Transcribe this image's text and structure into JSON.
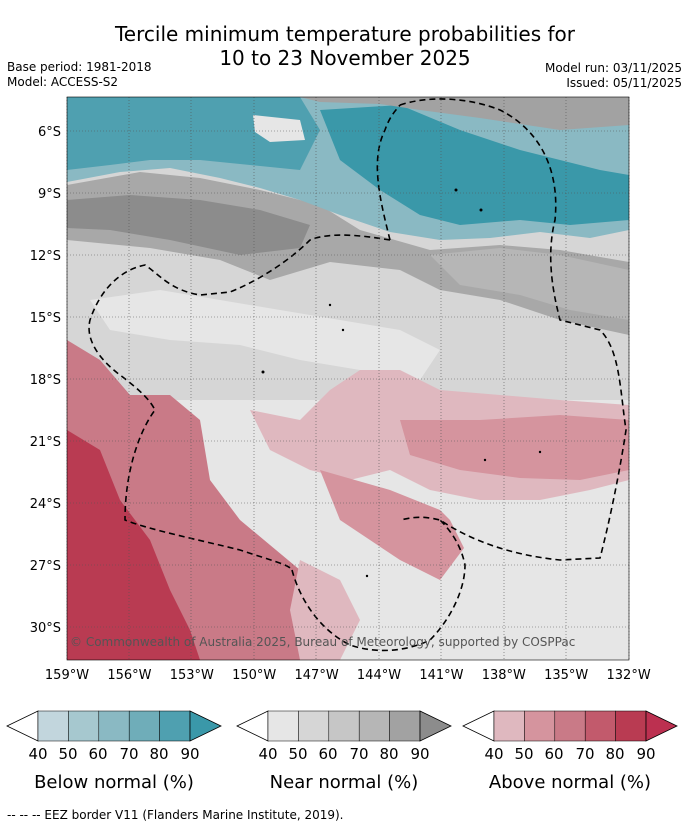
{
  "title": {
    "line1": "Tercile minimum temperature probabilities for",
    "line2": "10 to 23 November 2025"
  },
  "meta": {
    "base_period": "Base period: 1981-2018",
    "model": "Model: ACCESS-S2",
    "model_run": "Model run: 03/11/2025",
    "issued": "Issued: 05/11/2025"
  },
  "map": {
    "lat_labels": [
      "6°S",
      "9°S",
      "12°S",
      "15°S",
      "18°S",
      "21°S",
      "24°S",
      "27°S",
      "30°S"
    ],
    "lon_labels": [
      "159°W",
      "156°W",
      "153°W",
      "150°W",
      "147°W",
      "144°W",
      "141°W",
      "138°W",
      "135°W",
      "132°W"
    ],
    "copyright": "© Commonwealth of Australia 2025, Bureau of Meteorology, supported by COSPPac"
  },
  "colors": {
    "below": [
      "#c2d6dd",
      "#a6c8cf",
      "#8ab9c3",
      "#6fadb9",
      "#4fa0b0",
      "#3a98a9"
    ],
    "near": [
      "#e6e6e6",
      "#d6d6d6",
      "#c6c6c6",
      "#b6b6b6",
      "#a2a2a2",
      "#8c8c8c"
    ],
    "above": [
      "#dfb8bf",
      "#d5949e",
      "#c97a87",
      "#c25a6c",
      "#b93b52",
      "#bc3050"
    ]
  },
  "legend": {
    "ticks": [
      "40",
      "50",
      "60",
      "70",
      "80",
      "90"
    ],
    "below_title": "Below normal (%)",
    "near_title": "Near normal (%)",
    "above_title": "Above normal (%)"
  },
  "footer": "--  --  -- EEZ border V11 (Flanders Marine Institute, 2019)."
}
